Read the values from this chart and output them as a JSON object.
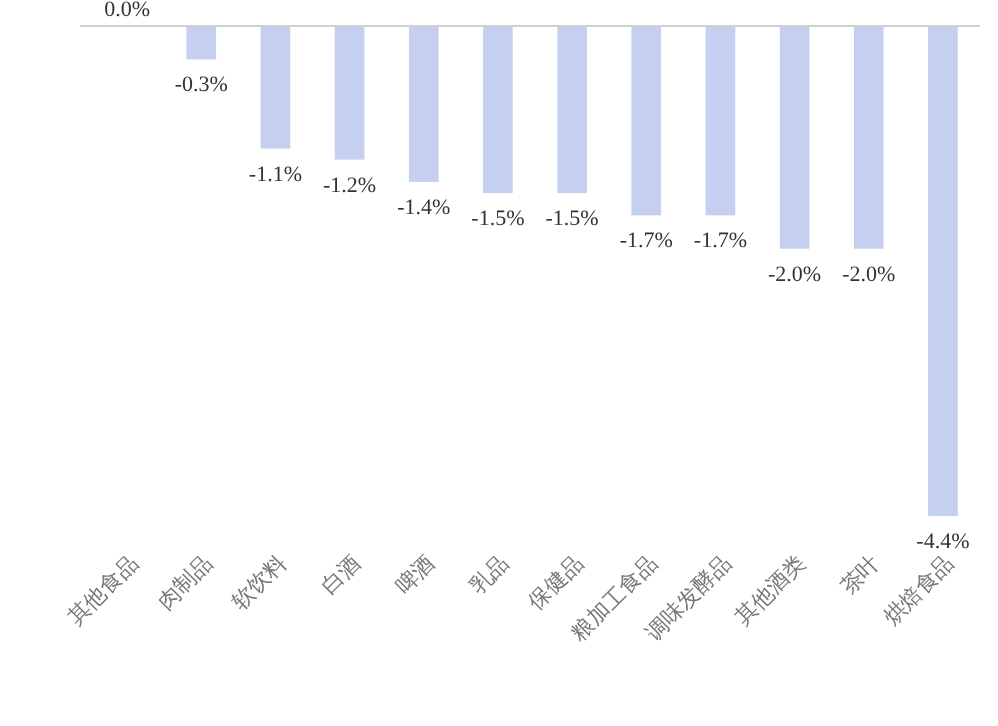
{
  "chart_data": {
    "type": "bar",
    "categories": [
      "其他食品",
      "肉制品",
      "软饮料",
      "白酒",
      "啤酒",
      "乳品",
      "保健品",
      "粮加工食品",
      "调味发酵品",
      "其他酒类",
      "茶叶",
      "烘焙食品"
    ],
    "values": [
      0.0,
      -0.3,
      -1.1,
      -1.2,
      -1.4,
      -1.5,
      -1.5,
      -1.7,
      -1.7,
      -2.0,
      -2.0,
      -4.4
    ],
    "value_labels": [
      "0.0%",
      "-0.3%",
      "-1.1%",
      "-1.2%",
      "-1.4%",
      "-1.5%",
      "-1.5%",
      "-1.7%",
      "-1.7%",
      "-2.0%",
      "-2.0%",
      "-4.4%"
    ],
    "color": "#c5d0f0"
  }
}
